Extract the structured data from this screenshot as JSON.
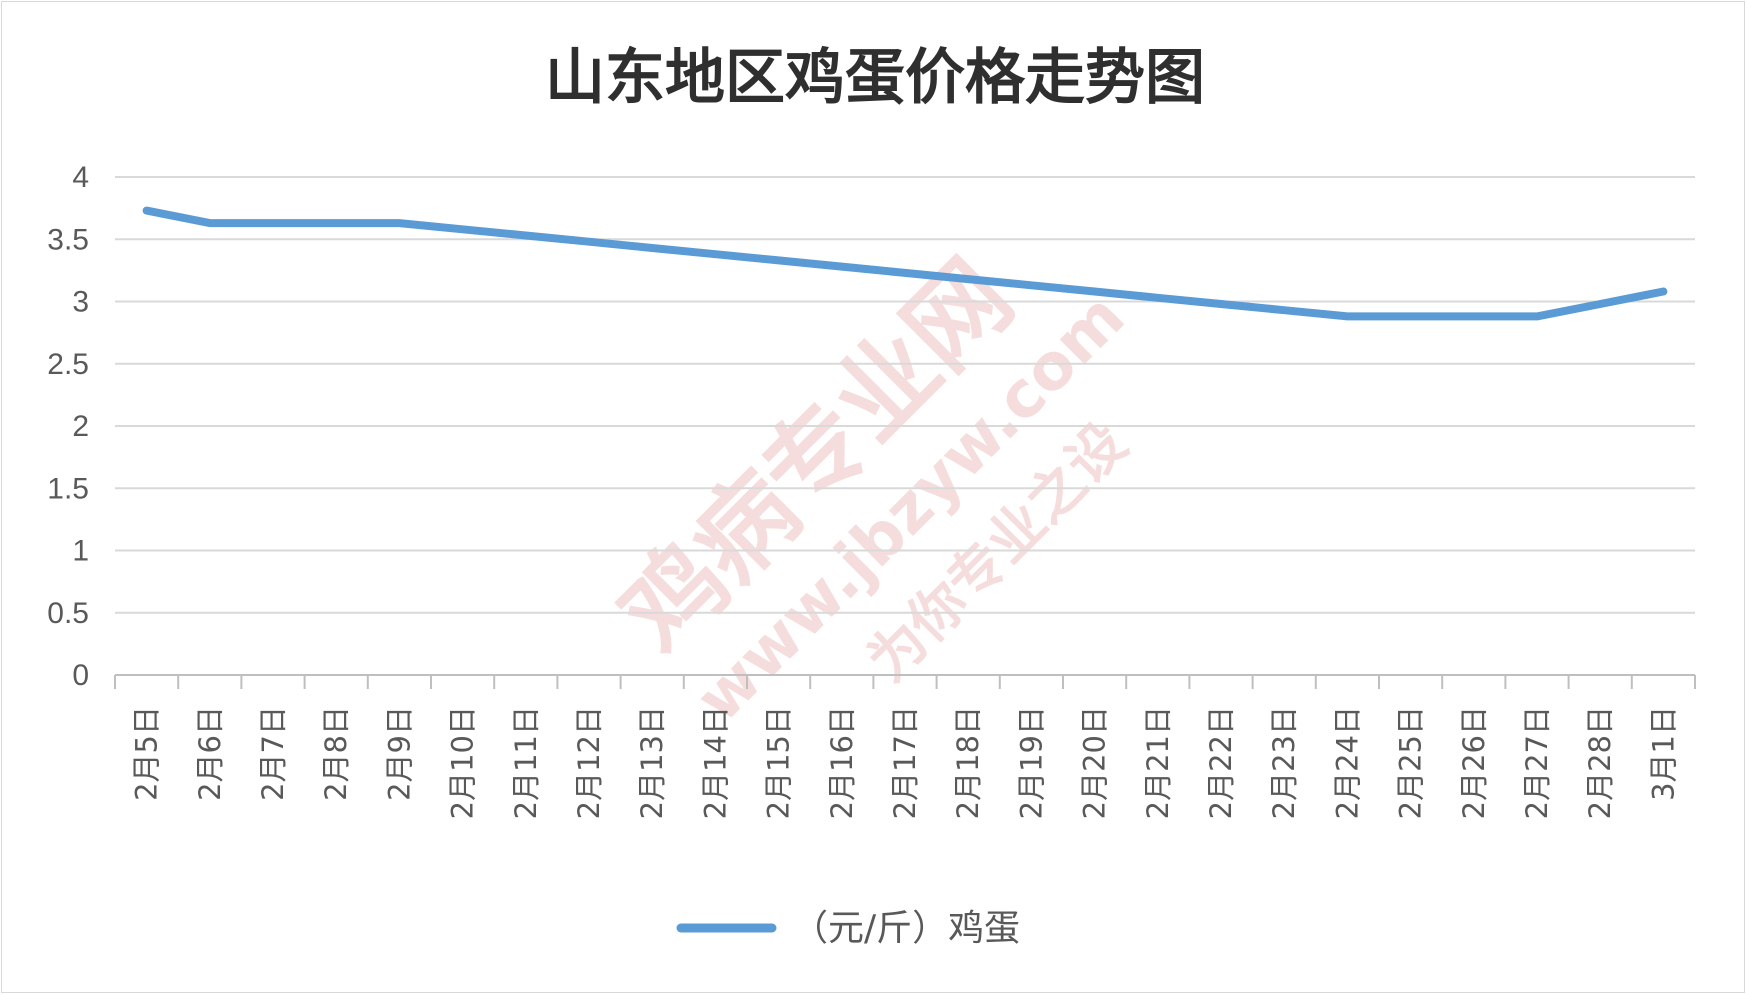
{
  "chart_data": {
    "type": "line",
    "title": "山东地区鸡蛋价格走势图",
    "categories": [
      "2月5日",
      "2月6日",
      "2月7日",
      "2月8日",
      "2月9日",
      "2月10日",
      "2月11日",
      "2月12日",
      "2月13日",
      "2月14日",
      "2月15日",
      "2月16日",
      "2月17日",
      "2月18日",
      "2月19日",
      "2月20日",
      "2月21日",
      "2月22日",
      "2月23日",
      "2月24日",
      "2月25日",
      "2月26日",
      "2月27日",
      "2月28日",
      "3月1日"
    ],
    "series": [
      {
        "name": "（元/斤）鸡蛋",
        "color": "#5b9bd5",
        "values": [
          3.73,
          3.63,
          3.63,
          3.63,
          3.63,
          3.58,
          3.53,
          3.48,
          3.43,
          3.38,
          3.33,
          3.28,
          3.23,
          3.18,
          3.13,
          3.08,
          3.03,
          2.98,
          2.93,
          2.88,
          2.88,
          2.88,
          2.88,
          2.98,
          3.08
        ]
      }
    ],
    "yticks": [
      "0",
      "0.5",
      "1",
      "1.5",
      "2",
      "2.5",
      "3",
      "3.5",
      "4"
    ],
    "ylim": [
      0,
      4
    ],
    "grid": true,
    "legend_position": "bottom"
  },
  "watermark": {
    "text_cn": "鸡病专业网",
    "text_url": "www.jbzyw.com",
    "text_script": "为你专业之设",
    "color": "#e8a0a0"
  }
}
